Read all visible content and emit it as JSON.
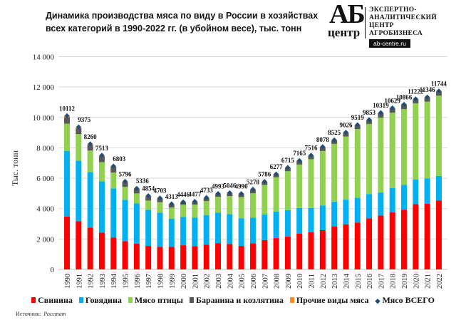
{
  "title_line1": "Динамика производства  мяса по виду в России в хозяйствах",
  "title_line2": "всех категорий в 1990-2022 гг. (в убойном весе), тыс. тонн",
  "logo": {
    "mark": "АБ",
    "sub": "центр",
    "lines": [
      "ЭКСПЕРТНО-",
      "АНАЛИТИЧЕСКИЙ",
      "ЦЕНТР",
      "АГРОБИЗНЕСА"
    ],
    "site": "ab-centre.ru"
  },
  "source_label": "Источник:",
  "source_value": "Росстат",
  "chart_data": {
    "type": "bar",
    "stacked": true,
    "ylabel": "Тыс. тонн",
    "ylim": [
      0,
      14000
    ],
    "yticks": [
      "0",
      "2 000",
      "4 000",
      "6 000",
      "8 000",
      "10 000",
      "12 000",
      "14 000"
    ],
    "grid": true,
    "legend_placement": "bottom",
    "categories": [
      "1990",
      "1991",
      "1992",
      "1993",
      "1994",
      "1995",
      "1996",
      "1997",
      "1998",
      "1999",
      "2000",
      "2001",
      "2002",
      "2003",
      "2004",
      "2005",
      "2006",
      "2007",
      "2008",
      "2009",
      "2010",
      "2011",
      "2012",
      "2013",
      "2014",
      "2015",
      "2016",
      "2017",
      "2018",
      "2019",
      "2020",
      "2021",
      "2022"
    ],
    "series": [
      {
        "name": "Свинина",
        "color": "#ff0000",
        "values": [
          3480,
          3170,
          2750,
          2420,
          2090,
          1860,
          1700,
          1545,
          1480,
          1480,
          1590,
          1530,
          1620,
          1730,
          1670,
          1545,
          1720,
          1935,
          2060,
          2170,
          2360,
          2450,
          2580,
          2830,
          2970,
          3080,
          3360,
          3540,
          3750,
          3930,
          4290,
          4320,
          4540
        ]
      },
      {
        "name": "Говядина",
        "color": "#00b0f0",
        "values": [
          4310,
          3980,
          3650,
          3370,
          3230,
          2710,
          2640,
          2385,
          2250,
          1850,
          1860,
          1870,
          1950,
          2000,
          1970,
          1825,
          1680,
          1685,
          1750,
          1730,
          1680,
          1590,
          1620,
          1630,
          1620,
          1630,
          1600,
          1520,
          1600,
          1630,
          1630,
          1670,
          1610
        ]
      },
      {
        "name": "Мясо птицы",
        "color": "#92d050",
        "values": [
          1800,
          1750,
          1420,
          1270,
          1050,
          860,
          660,
          600,
          690,
          740,
          810,
          860,
          930,
          1050,
          1180,
          1390,
          1610,
          1940,
          2250,
          2560,
          2860,
          3210,
          3590,
          3800,
          4150,
          4520,
          4610,
          4930,
          4970,
          4990,
          5010,
          5050,
          5280
        ]
      },
      {
        "name": "Баранина и козлятина",
        "color": "#595959",
        "values": [
          420,
          400,
          380,
          400,
          390,
          330,
          300,
          290,
          250,
          210,
          155,
          185,
          200,
          180,
          190,
          195,
          235,
          195,
          185,
          225,
          235,
          236,
          258,
          235,
          256,
          259,
          253,
          299,
          279,
          286,
          262,
          276,
          284
        ]
      },
      {
        "name": "Прочие виды мяса",
        "color": "#ff8c1a",
        "values": [
          102,
          75,
          60,
          53,
          43,
          36,
          36,
          34,
          33,
          33,
          31,
          32,
          33,
          33,
          36,
          35,
          33,
          31,
          32,
          30,
          30,
          30,
          30,
          30,
          30,
          30,
          30,
          30,
          30,
          30,
          30,
          30,
          30
        ]
      }
    ],
    "total": {
      "name": "Мясо ВСЕГО",
      "color": "#1f4e79",
      "marker": "diamond",
      "values": [
        10112,
        9375,
        8260,
        7513,
        6803,
        5796,
        5336,
        4854,
        4703,
        4313,
        4446,
        4477,
        4733,
        4993,
        5046,
        4990,
        5278,
        5786,
        6277,
        6715,
        7165,
        7516,
        8078,
        8525,
        9026,
        9519,
        9853,
        10319,
        10629,
        10866,
        11222,
        11346,
        11744
      ],
      "labels": [
        "10112",
        "9375",
        "8260",
        "7513",
        "6803",
        "5796",
        "5336",
        "4854",
        "4703",
        "4313",
        "4446",
        "4477",
        "4733",
        "4993",
        "5046",
        "4990",
        "5278",
        "5786",
        "6277",
        "6715",
        "7165",
        "7516",
        "8078",
        "8525",
        "9026",
        "9519",
        "9853",
        "10319",
        "10629",
        "10866",
        "11222",
        "11346",
        "11744"
      ]
    }
  }
}
